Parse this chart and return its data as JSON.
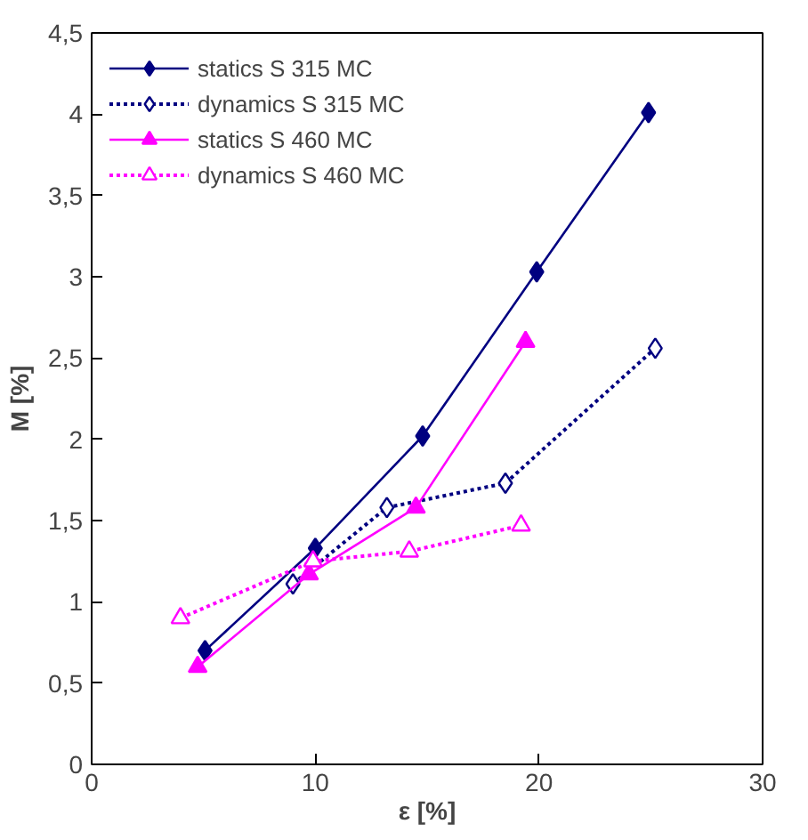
{
  "chart_data": {
    "type": "line",
    "xlabel": "ε [%]",
    "ylabel": "M [%]",
    "xlim": [
      0,
      30
    ],
    "xticks": [
      0,
      10,
      20,
      30
    ],
    "ylim": [
      0,
      4.5
    ],
    "yticks": [
      0,
      {
        "value": 0.5,
        "label": "0,5"
      },
      1,
      {
        "value": 1.5,
        "label": "1,5"
      },
      2,
      {
        "value": 2.5,
        "label": "2,5"
      },
      3,
      {
        "value": 3.5,
        "label": "3,5"
      },
      4,
      {
        "value": 4.5,
        "label": "4,5"
      }
    ],
    "grid": false,
    "legend": "top left",
    "series": [
      {
        "name": "statics S 315 MC",
        "color": "#000080",
        "x": [
          5.07,
          10,
          14.8,
          19.9,
          24.9
        ],
        "values": [
          0.7,
          1.33,
          2.02,
          3.03,
          4.01
        ],
        "marker": "diamond",
        "line_style": "solid"
      },
      {
        "name": "dynamics S 315 MC",
        "color": "#000080",
        "x": [
          9.0,
          13.2,
          18.5,
          25.2
        ],
        "values": [
          1.11,
          1.58,
          1.73,
          2.56
        ],
        "marker": "diamond",
        "line_style": "dotted"
      },
      {
        "name": "statics S 460 MC",
        "color": "#ff00ff",
        "x": [
          4.74,
          9.72,
          14.5,
          19.4
        ],
        "values": [
          0.6,
          1.17,
          1.58,
          2.6
        ],
        "marker": "triangle",
        "line_style": "solid"
      },
      {
        "name": "dynamics S 460 MC",
        "color": "#ff00ff",
        "x": [
          3.97,
          9.9,
          14.2,
          19.2
        ],
        "values": [
          0.9,
          1.25,
          1.31,
          1.47
        ],
        "marker": "triangle",
        "line_style": "dotted"
      }
    ]
  }
}
